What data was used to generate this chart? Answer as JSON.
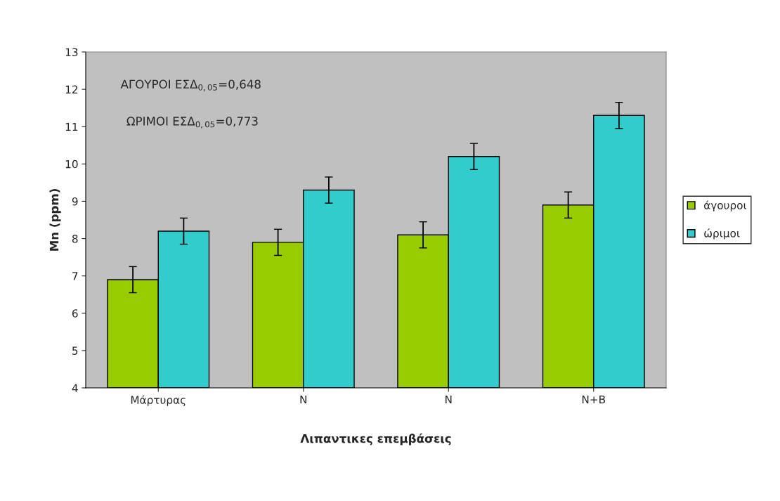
{
  "chart_data": {
    "type": "bar",
    "xlabel": "Λιπαντικες επεμβάσεις",
    "ylabel": "Mn (ppm)",
    "categories": [
      "Μάρτυρας",
      "N",
      "N",
      "N+B"
    ],
    "series": [
      {
        "name": "άγουροι",
        "color": "#99cc00",
        "values": [
          6.9,
          7.9,
          8.1,
          8.9
        ],
        "errors": [
          0.35,
          0.35,
          0.35,
          0.35
        ]
      },
      {
        "name": "ώριμοι",
        "color": "#33cccc",
        "values": [
          8.2,
          9.3,
          10.2,
          11.3
        ],
        "errors": [
          0.35,
          0.35,
          0.35,
          0.35
        ]
      }
    ],
    "ylim": [
      4,
      13
    ],
    "yticks": [
      4,
      5,
      6,
      7,
      8,
      9,
      10,
      11,
      12,
      13
    ],
    "annotations": [
      "ΑΓΟΥΡΟΙ ΕΣΔ$_{0,05}$=0,648",
      "ΩΡΙΜΟΙ ΕΣΔ$_{0,05}$=0,773"
    ],
    "legend": "right",
    "grid": false
  }
}
